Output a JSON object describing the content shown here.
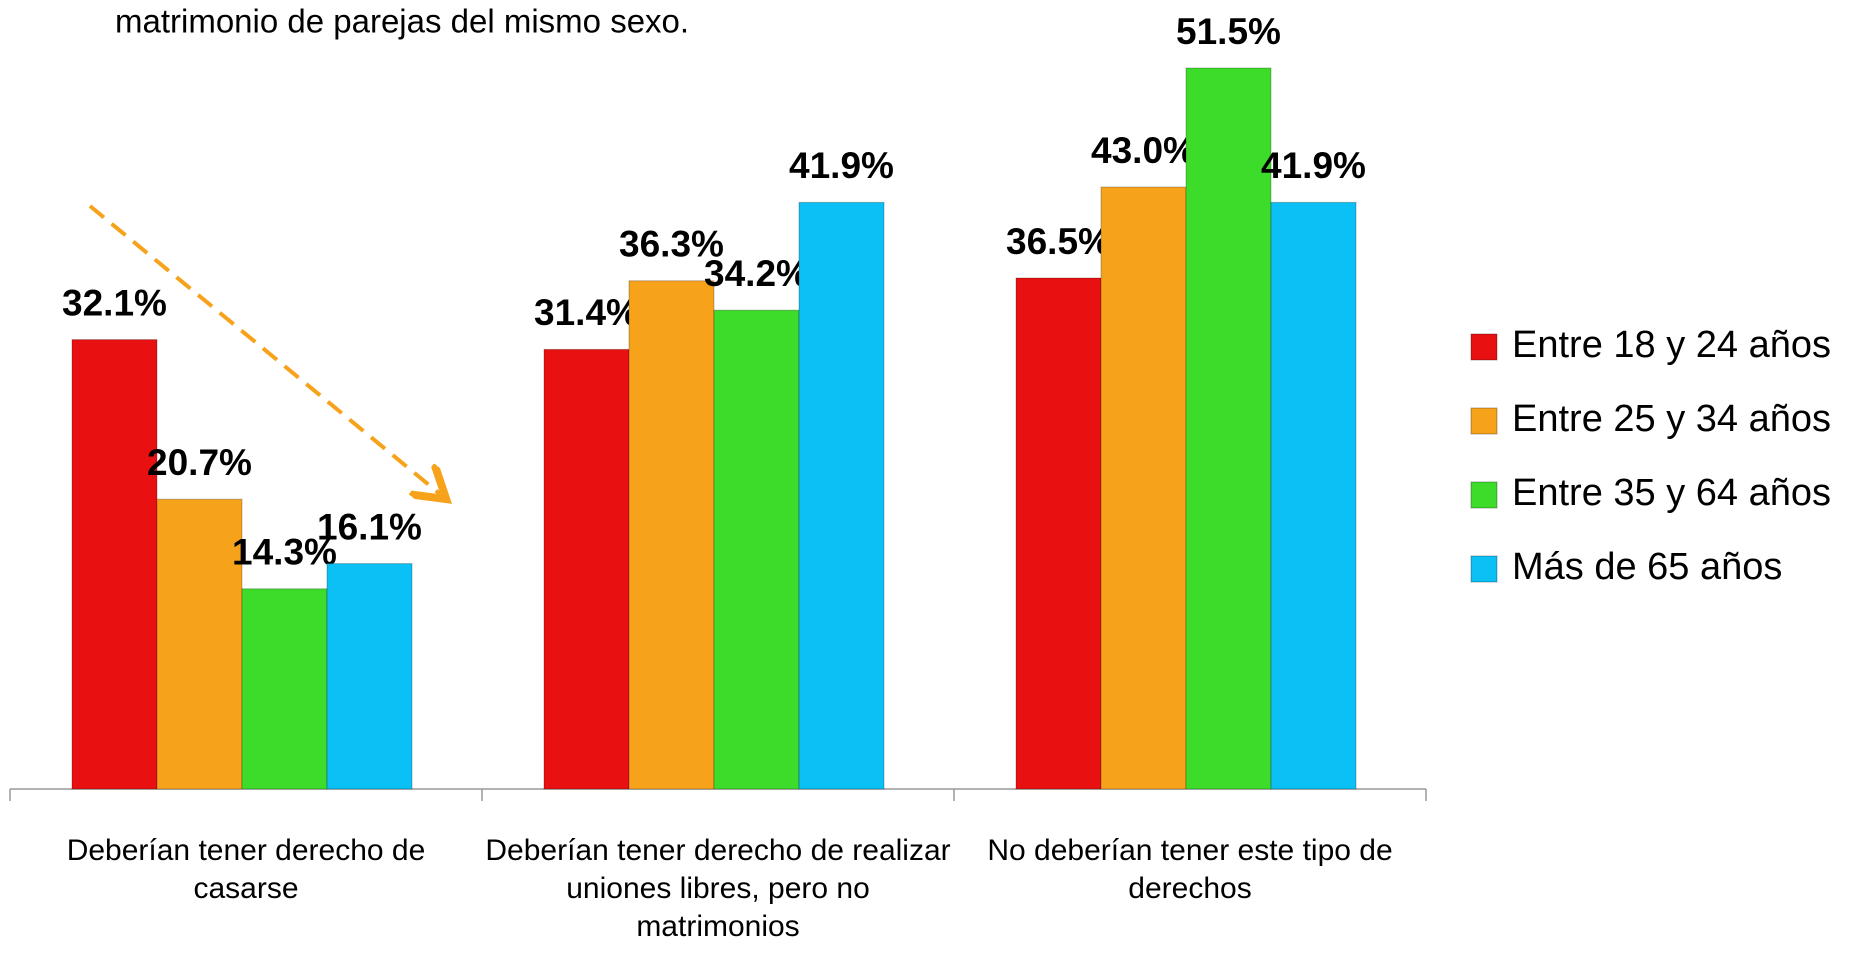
{
  "chart_data": {
    "type": "bar",
    "title": "matrimonio de parejas del mismo sexo.",
    "categories": [
      "Deberían tener derecho de casarse",
      "Deberían tener derecho de realizar uniones libres, pero no matrimonios",
      "No deberían tener este tipo de derechos"
    ],
    "series": [
      {
        "name": "Entre 18 y 24 años",
        "color": "#e81010",
        "values": [
          32.1,
          31.4,
          36.5
        ],
        "value_labels": [
          "32.1%",
          "31.4%",
          "36.5%"
        ]
      },
      {
        "name": "Entre 25 y 34 años",
        "color": "#f7a21b",
        "values": [
          20.7,
          36.3,
          43.0
        ],
        "value_labels": [
          "20.7%",
          "36.3%",
          "43.0%"
        ]
      },
      {
        "name": "Entre 35 y 64 años",
        "color": "#3ddc2a",
        "values": [
          14.3,
          34.2,
          51.5
        ],
        "value_labels": [
          "14.3%",
          "34.2%",
          "51.5%"
        ]
      },
      {
        "name": "Más de 65 años",
        "color": "#0ac0f5",
        "values": [
          16.1,
          41.9,
          41.9
        ],
        "value_labels": [
          "16.1%",
          "41.9%",
          "41.9%"
        ]
      }
    ],
    "legend": "right"
  }
}
